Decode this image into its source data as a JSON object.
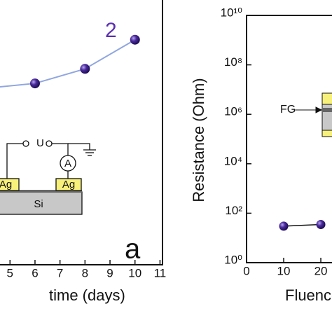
{
  "chart_data": [
    {
      "type": "scatter",
      "xlabel": "time (days)",
      "xlim": [
        4.6,
        11.1
      ],
      "xticks": [
        5,
        6,
        7,
        8,
        9,
        10,
        11
      ],
      "ylim": [
        0,
        100
      ],
      "series": [
        {
          "name": "2",
          "color": "#3d1f8f",
          "x": [
            6,
            8,
            10
          ],
          "values": [
            68.5,
            74,
            85
          ]
        }
      ],
      "fit": {
        "color": "#8fa6e0",
        "x": [
          4.6,
          6,
          8,
          10
        ],
        "values": [
          67.2,
          68.5,
          74,
          85
        ]
      },
      "panel_label": "a",
      "inset": {
        "source": "U",
        "meter": "A",
        "left_contact": "Ag",
        "right_contact": "Ag",
        "substrate": "Si"
      }
    },
    {
      "type": "line",
      "ylabel": "Resistance (Ohm)",
      "xlabel": "Fluence",
      "xlim": [
        0,
        23.2
      ],
      "xticks": [
        0,
        10,
        20
      ],
      "ylim": [
        1,
        10000000000
      ],
      "log_y": true,
      "yticks": [
        {
          "value": 1,
          "label": "10⁰"
        },
        {
          "value": 100,
          "label": "10²"
        },
        {
          "value": 10000,
          "label": "10⁴"
        },
        {
          "value": 1000000,
          "label": "10⁶"
        },
        {
          "value": 100000000,
          "label": "10⁸"
        },
        {
          "value": 10000000000,
          "label": "10¹⁰"
        }
      ],
      "series": [
        {
          "color": "#3d1f8f",
          "x": [
            10,
            20
          ],
          "values": [
            30,
            35
          ]
        }
      ],
      "inset": {
        "layer": "FG"
      }
    }
  ]
}
